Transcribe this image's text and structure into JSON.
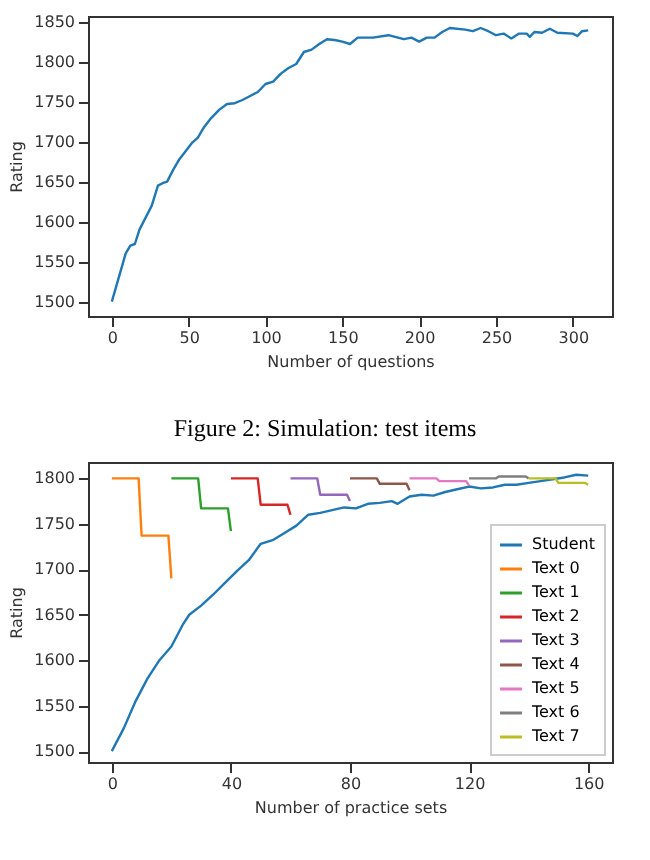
{
  "chart_data": [
    {
      "type": "line",
      "xlabel": "Number of questions",
      "ylabel": "Rating",
      "annotations": [
        "Figure 2: Simulation: test items"
      ],
      "xlim": [
        -15.5,
        325.5
      ],
      "ylim": [
        1482,
        1857
      ],
      "xticks": [
        0,
        50,
        100,
        150,
        200,
        250,
        300
      ],
      "yticks": [
        1500,
        1550,
        1600,
        1650,
        1700,
        1750,
        1800,
        1850
      ],
      "grid": false,
      "legend": false,
      "x": [
        0,
        3,
        6,
        9,
        12,
        15,
        18,
        22,
        26,
        30,
        33,
        36,
        40,
        44,
        48,
        52,
        56,
        60,
        64,
        70,
        75,
        80,
        85,
        90,
        95,
        100,
        105,
        110,
        115,
        120,
        125,
        130,
        135,
        140,
        145,
        150,
        155,
        160,
        170,
        180,
        190,
        195,
        200,
        205,
        210,
        215,
        220,
        230,
        235,
        240,
        245,
        250,
        255,
        260,
        265,
        270,
        272,
        275,
        280,
        285,
        290,
        300,
        303,
        306,
        310
      ],
      "series": [
        {
          "color": "#1f77b4",
          "values": [
            1500,
            1520,
            1540,
            1560,
            1570,
            1572,
            1590,
            1605,
            1620,
            1645,
            1648,
            1650,
            1665,
            1678,
            1688,
            1698,
            1705,
            1718,
            1728,
            1740,
            1747,
            1748,
            1752,
            1757,
            1762,
            1772,
            1775,
            1785,
            1792,
            1797,
            1812,
            1815,
            1822,
            1828,
            1827,
            1825,
            1822,
            1830,
            1830,
            1833,
            1828,
            1830,
            1825,
            1830,
            1830,
            1837,
            1842,
            1840,
            1838,
            1842,
            1838,
            1833,
            1835,
            1829,
            1835,
            1835,
            1831,
            1837,
            1836,
            1841,
            1836,
            1835,
            1832,
            1838,
            1839
          ]
        }
      ]
    },
    {
      "type": "line",
      "xlabel": "Number of practice sets",
      "ylabel": "Rating",
      "xlim": [
        -8,
        168
      ],
      "ylim": [
        1488,
        1818
      ],
      "xticks": [
        0,
        40,
        80,
        120,
        160
      ],
      "yticks": [
        1500,
        1550,
        1600,
        1650,
        1700,
        1750,
        1800
      ],
      "grid": false,
      "legend": "bottom right",
      "series": [
        {
          "name": "Student",
          "color": "#1f77b4",
          "x": [
            0,
            4,
            8,
            12,
            16,
            20,
            24,
            26,
            30,
            34,
            38,
            42,
            46,
            50,
            54,
            58,
            62,
            66,
            70,
            74,
            78,
            82,
            86,
            90,
            94,
            96,
            100,
            104,
            108,
            112,
            116,
            120,
            124,
            128,
            132,
            136,
            140,
            144,
            148,
            152,
            156,
            160
          ],
          "values": [
            1500,
            1525,
            1555,
            1580,
            1600,
            1615,
            1640,
            1650,
            1660,
            1672,
            1685,
            1698,
            1710,
            1728,
            1732,
            1740,
            1748,
            1760,
            1762,
            1765,
            1768,
            1767,
            1772,
            1773,
            1775,
            1772,
            1780,
            1782,
            1781,
            1785,
            1788,
            1791,
            1789,
            1790,
            1793,
            1793,
            1795,
            1797,
            1799,
            1801,
            1804,
            1803
          ]
        },
        {
          "name": "Text 0",
          "color": "#ff7f0e",
          "x": [
            0,
            9,
            10,
            19,
            20
          ],
          "values": [
            1800,
            1800,
            1737,
            1737,
            1690
          ]
        },
        {
          "name": "Text 1",
          "color": "#2ca02c",
          "x": [
            20,
            29,
            30,
            39,
            40
          ],
          "values": [
            1800,
            1800,
            1767,
            1767,
            1742
          ]
        },
        {
          "name": "Text 2",
          "color": "#d62728",
          "x": [
            40,
            49,
            50,
            59,
            60
          ],
          "values": [
            1800,
            1800,
            1771,
            1771,
            1760
          ]
        },
        {
          "name": "Text 3",
          "color": "#9467bd",
          "x": [
            60,
            69,
            70,
            79,
            80
          ],
          "values": [
            1800,
            1800,
            1782,
            1782,
            1775
          ]
        },
        {
          "name": "Text 4",
          "color": "#8c564b",
          "x": [
            80,
            89,
            90,
            99,
            100
          ],
          "values": [
            1800,
            1800,
            1794,
            1794,
            1787
          ]
        },
        {
          "name": "Text 5",
          "color": "#e377c2",
          "x": [
            100,
            109,
            110,
            119,
            120
          ],
          "values": [
            1800,
            1800,
            1797,
            1797,
            1792
          ]
        },
        {
          "name": "Text 6",
          "color": "#7f7f7f",
          "x": [
            120,
            129,
            130,
            139,
            140
          ],
          "values": [
            1800,
            1800,
            1802,
            1802,
            1800
          ]
        },
        {
          "name": "Text 7",
          "color": "#bcbd22",
          "x": [
            140,
            149,
            150,
            159,
            160
          ],
          "values": [
            1800,
            1800,
            1795,
            1795,
            1793
          ]
        }
      ]
    }
  ]
}
